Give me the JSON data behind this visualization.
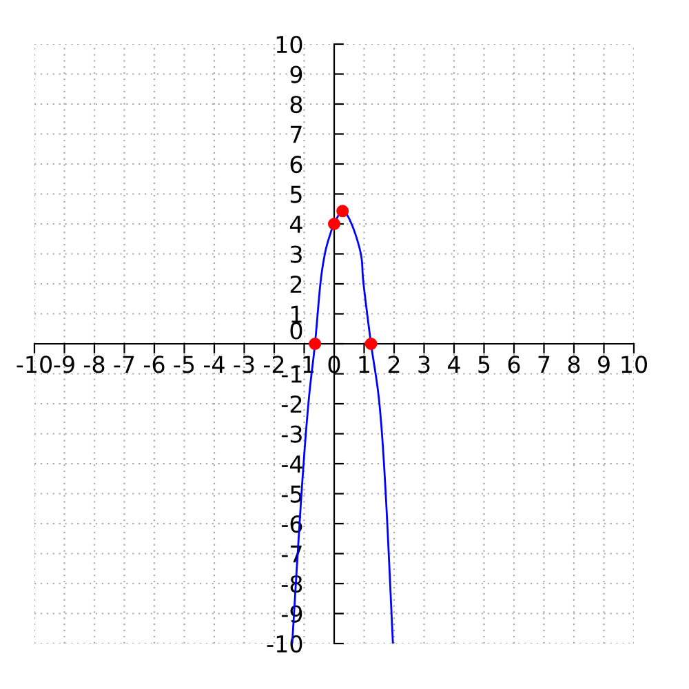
{
  "chart_data": {
    "type": "line",
    "series": [
      {
        "color": "#0000ff",
        "marker": "none",
        "x": [
          -1.4,
          -1.09,
          -0.86,
          -0.64,
          -0.46,
          -0.31,
          -0.15,
          0,
          0.28,
          0.58,
          0.89,
          0.98,
          1.23,
          1.51,
          1.72,
          1.96
        ],
        "values": [
          -10,
          -5,
          -2,
          0,
          2,
          3,
          3.6,
          4,
          4.43,
          4,
          3,
          2,
          0,
          -2,
          -5,
          -10
        ]
      },
      {
        "type": "scatter",
        "color": "#ff0000",
        "marker": "circle",
        "x": [
          -0.64,
          0,
          0.28,
          1.23
        ],
        "values": [
          0,
          4,
          4.43,
          0
        ]
      }
    ],
    "xlim": [
      -10,
      10
    ],
    "ylim": [
      -10,
      10
    ],
    "xticks": [
      -10,
      -9,
      -8,
      -7,
      -6,
      -5,
      -4,
      -3,
      -2,
      -1,
      0,
      1,
      2,
      3,
      4,
      5,
      6,
      7,
      8,
      9,
      10
    ],
    "yticks": [
      -10,
      -9,
      -8,
      -7,
      -6,
      -5,
      -4,
      -3,
      -2,
      -1,
      0,
      1,
      2,
      3,
      4,
      5,
      6,
      7,
      8,
      9,
      10
    ],
    "grid": true,
    "legend": false,
    "line_style": "solid"
  }
}
